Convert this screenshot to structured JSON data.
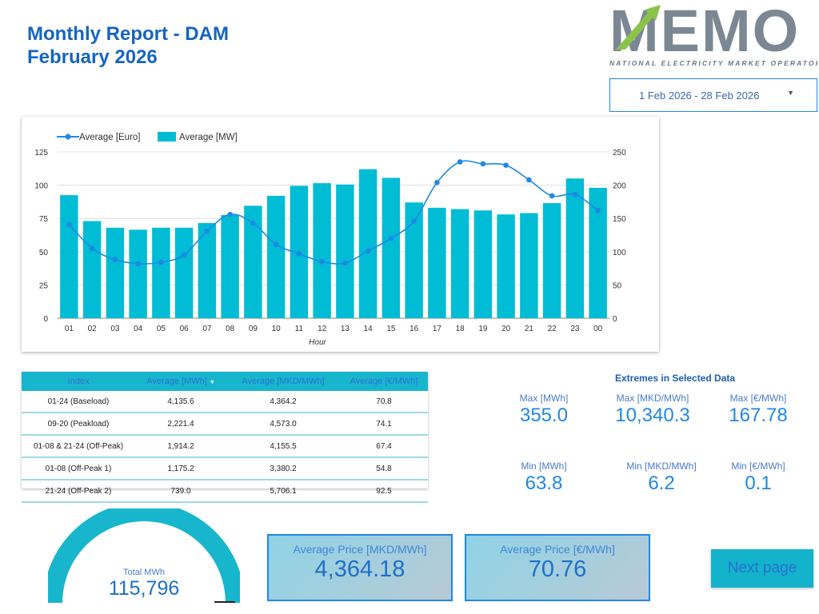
{
  "header": {
    "title_line1": "Monthly Report - DAM",
    "title_line2": "February 2026"
  },
  "logo": {
    "text": "MEMO",
    "subtitle": "NATIONAL ELECTRICITY MARKET OPERATOR"
  },
  "date_range": {
    "value": "1 Feb 2026 - 28 Feb 2026"
  },
  "colors": {
    "title": "#1565c0",
    "bar": "#00bcd4",
    "line": "#1e88e5",
    "accent": "#1e88e5"
  },
  "chart_data": {
    "type": "bar",
    "xlabel": "Hour",
    "categories": [
      "01",
      "02",
      "03",
      "04",
      "05",
      "06",
      "07",
      "08",
      "09",
      "10",
      "11",
      "12",
      "13",
      "14",
      "15",
      "16",
      "17",
      "18",
      "19",
      "20",
      "21",
      "22",
      "23",
      "00"
    ],
    "series": [
      {
        "name": "Average [Euro]",
        "type": "line",
        "axis": "left",
        "values": [
          70.5,
          52.5,
          44,
          41,
          42,
          47.5,
          65.5,
          78,
          71.5,
          55.5,
          48.5,
          42.5,
          41.5,
          50.5,
          60,
          73,
          102,
          117.5,
          116,
          115,
          104,
          92,
          93,
          81
        ]
      },
      {
        "name": "Average [MW]",
        "type": "bar",
        "axis": "right",
        "values": [
          185,
          146,
          136,
          133,
          136,
          136,
          143,
          155,
          169,
          184,
          199,
          203,
          201,
          224,
          211,
          174,
          166,
          164,
          162,
          156,
          158,
          173,
          210,
          196
        ]
      }
    ],
    "y_left": {
      "min": 0,
      "max": 125,
      "ticks": [
        "0",
        "25",
        "50",
        "75",
        "100",
        "125"
      ]
    },
    "y_right": {
      "min": 0,
      "max": 250,
      "ticks": [
        "0",
        "50",
        "100",
        "150",
        "200",
        "250"
      ]
    },
    "grid": true,
    "legend_position": "top-left"
  },
  "table": {
    "headers": [
      "Index",
      "Average [MWh]",
      "Average [MKD/MWh]",
      "Average [€/MWh]"
    ],
    "sort_indicator": "▼",
    "rows": [
      [
        "01-24 (Baseload)",
        "4,135.6",
        "4,364.2",
        "70.8"
      ],
      [
        "09-20 (Peakload)",
        "2,221.4",
        "4,573.0",
        "74.1"
      ],
      [
        "01-08 & 21-24 (Off-Peak)",
        "1,914.2",
        "4,155.5",
        "67.4"
      ],
      [
        "01-08 (Off-Peak 1)",
        "1,175.2",
        "3,380.2",
        "54.8"
      ],
      [
        "21-24 (Off-Peak 2)",
        "739.0",
        "5,706.1",
        "92.5"
      ]
    ]
  },
  "extremes": {
    "title": "Extremes in Selected Data",
    "max": [
      {
        "label": "Max [MWh]",
        "value": "355.0"
      },
      {
        "label": "Max [MKD/MWh]",
        "value": "10,340.3"
      },
      {
        "label": "Max [€/MWh]",
        "value": "167.78"
      }
    ],
    "min": [
      {
        "label": "Min [MWh]",
        "value": "63.8"
      },
      {
        "label": "Min [MKD/MWh]",
        "value": "6.2"
      },
      {
        "label": "Min [€/MWh]",
        "value": "0.1"
      }
    ]
  },
  "gauge": {
    "label": "Total MWh",
    "value": "115,796",
    "fill_fraction": 1.0
  },
  "price_cards": [
    {
      "label": "Average Price [MKD/MWh]",
      "value": "4,364.18"
    },
    {
      "label": "Average Price [€/MWh]",
      "value": "70.76"
    }
  ],
  "next_button": {
    "label": "Next page"
  }
}
